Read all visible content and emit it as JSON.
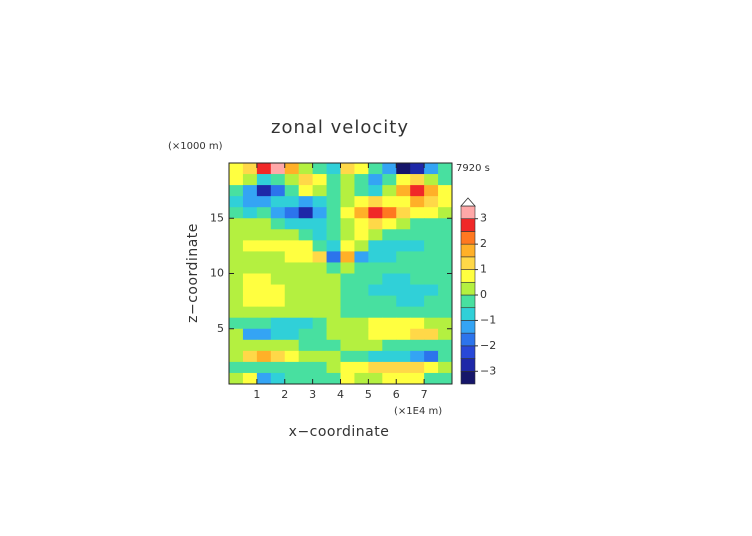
{
  "chart_data": {
    "type": "heatmap",
    "title": "zonal velocity",
    "xlabel": "x−coordinate",
    "ylabel": "z−coordinate",
    "x_unit": "(×1E4 m)",
    "y_unit": "(×1000 m)",
    "time_label": "7920 s",
    "xlim": [
      0,
      8
    ],
    "ylim": [
      0,
      20
    ],
    "xticks": [
      1,
      2,
      3,
      4,
      5,
      6,
      7
    ],
    "yticks": [
      5,
      10,
      15
    ],
    "x": [
      0.25,
      0.75,
      1.25,
      1.75,
      2.25,
      2.75,
      3.25,
      3.75,
      4.25,
      4.75,
      5.25,
      5.75,
      6.25,
      6.75,
      7.25,
      7.75
    ],
    "y": [
      19.5,
      18.5,
      17.5,
      16.5,
      15.5,
      14.5,
      13.5,
      12.5,
      11.5,
      10.5,
      9.5,
      8.5,
      7.5,
      6.5,
      5.5,
      4.5,
      3.5,
      2.5,
      1.5,
      0.5
    ],
    "z": [
      [
        0.5,
        1.2,
        2.8,
        3.4,
        1.5,
        0.3,
        -0.5,
        -1.0,
        1.0,
        0.5,
        -0.3,
        -1.5,
        -3.4,
        -2.8,
        -1.2,
        -0.3
      ],
      [
        0.8,
        0.3,
        -1.0,
        -0.5,
        0.3,
        1.2,
        0.5,
        -0.3,
        0.3,
        -0.5,
        -1.2,
        -0.3,
        0.5,
        1.2,
        0.3,
        -0.5
      ],
      [
        -0.5,
        -1.5,
        -2.6,
        -1.8,
        -0.3,
        0.6,
        0.3,
        -0.2,
        0.2,
        -0.3,
        -0.6,
        0.3,
        1.5,
        2.6,
        1.8,
        0.5
      ],
      [
        -0.8,
        -1.2,
        -1.5,
        -0.8,
        -0.8,
        -1.2,
        -0.8,
        -0.3,
        0.3,
        0.8,
        1.2,
        0.8,
        0.8,
        1.5,
        1.2,
        0.8
      ],
      [
        -0.3,
        -0.8,
        -0.5,
        -1.2,
        -2.0,
        -2.6,
        -1.5,
        -0.5,
        0.5,
        1.5,
        2.6,
        2.0,
        1.2,
        0.5,
        0.8,
        0.3
      ],
      [
        0.3,
        0.2,
        0.1,
        -0.3,
        -0.8,
        -1.0,
        -0.8,
        -0.3,
        0.3,
        0.8,
        1.0,
        0.8,
        0.3,
        -0.1,
        -0.2,
        -0.3
      ],
      [
        0.2,
        0.3,
        0.3,
        0.2,
        0.1,
        -0.2,
        -0.6,
        -0.3,
        0.3,
        0.6,
        0.2,
        -0.1,
        -0.2,
        -0.3,
        -0.3,
        -0.2
      ],
      [
        0.3,
        0.5,
        0.6,
        0.6,
        0.6,
        0.6,
        -0.3,
        -0.8,
        0.8,
        0.3,
        -0.6,
        -0.6,
        -0.6,
        -0.6,
        -0.5,
        -0.3
      ],
      [
        0.3,
        0.4,
        0.4,
        0.4,
        0.6,
        0.8,
        1.2,
        -1.8,
        1.5,
        -1.2,
        -0.8,
        -0.6,
        -0.4,
        -0.4,
        -0.3,
        -0.3
      ],
      [
        0.2,
        0.2,
        0.2,
        0.3,
        0.3,
        0.3,
        0.4,
        -0.3,
        0.3,
        -0.4,
        -0.3,
        -0.3,
        -0.3,
        -0.2,
        -0.2,
        -0.2
      ],
      [
        0.3,
        0.6,
        0.5,
        0.3,
        0.2,
        0.2,
        0.2,
        0.1,
        -0.1,
        -0.2,
        -0.5,
        -0.6,
        -0.6,
        -0.5,
        -0.4,
        -0.3
      ],
      [
        0.4,
        0.8,
        0.8,
        0.6,
        0.3,
        0.2,
        0.2,
        0.1,
        -0.1,
        -0.2,
        -0.6,
        -0.8,
        -0.8,
        -0.8,
        -0.6,
        -0.4
      ],
      [
        0.3,
        0.6,
        0.6,
        0.5,
        0.3,
        0.2,
        0.2,
        0.1,
        -0.1,
        -0.2,
        -0.3,
        -0.5,
        -0.6,
        -0.6,
        -0.5,
        -0.3
      ],
      [
        0.1,
        0.2,
        0.2,
        0.2,
        0.1,
        0.1,
        0.2,
        0.1,
        -0.1,
        -0.1,
        -0.1,
        -0.2,
        -0.2,
        -0.2,
        -0.1,
        -0.1
      ],
      [
        -0.2,
        -0.3,
        -0.5,
        -0.6,
        -0.6,
        -0.6,
        -0.3,
        0.1,
        0.2,
        0.4,
        0.6,
        0.6,
        0.6,
        0.5,
        0.4,
        0.2
      ],
      [
        0.1,
        -1.2,
        -1.2,
        -0.8,
        -0.6,
        -0.4,
        -0.2,
        0.1,
        0.2,
        0.3,
        0.5,
        0.6,
        0.8,
        1.0,
        1.0,
        0.3
      ],
      [
        0.2,
        0.3,
        0.3,
        0.2,
        0.1,
        -0.1,
        -0.2,
        -0.1,
        0.1,
        0.1,
        0.1,
        -0.1,
        -0.2,
        -0.3,
        -0.3,
        -0.2
      ],
      [
        0.3,
        1.3,
        1.6,
        1.2,
        0.8,
        0.4,
        0.2,
        0.1,
        -0.2,
        -0.4,
        -0.6,
        -0.8,
        -1.0,
        -1.3,
        -1.6,
        -0.3
      ],
      [
        -0.3,
        -0.5,
        -0.5,
        -0.3,
        -0.2,
        -0.1,
        -0.1,
        0.1,
        0.6,
        0.8,
        1.0,
        1.2,
        1.3,
        1.0,
        0.5,
        0.2
      ],
      [
        0.3,
        0.8,
        -1.2,
        -0.8,
        -0.5,
        -0.3,
        -0.3,
        -0.5,
        0.5,
        0.3,
        0.4,
        0.6,
        0.8,
        0.5,
        -0.2,
        -0.3
      ]
    ],
    "levels": [
      -3.5,
      -3,
      -2.5,
      -2,
      -1.5,
      -1,
      -0.5,
      0,
      0.5,
      1,
      1.5,
      2,
      2.5,
      3,
      3.5
    ],
    "colors": [
      "#16166a",
      "#1e28a8",
      "#2848d8",
      "#2c74ec",
      "#34a4f4",
      "#30d0d8",
      "#48e0a0",
      "#b4f040",
      "#ffff40",
      "#ffd848",
      "#ffb028",
      "#ff7820",
      "#f02828",
      "#ffa8a8"
    ],
    "over_color": "#ffffff",
    "colorbar_ticks": [
      {
        "value": -3,
        "label": "−3"
      },
      {
        "value": -2,
        "label": "−2"
      },
      {
        "value": -1,
        "label": "−1"
      },
      0,
      1,
      2,
      3
    ]
  }
}
